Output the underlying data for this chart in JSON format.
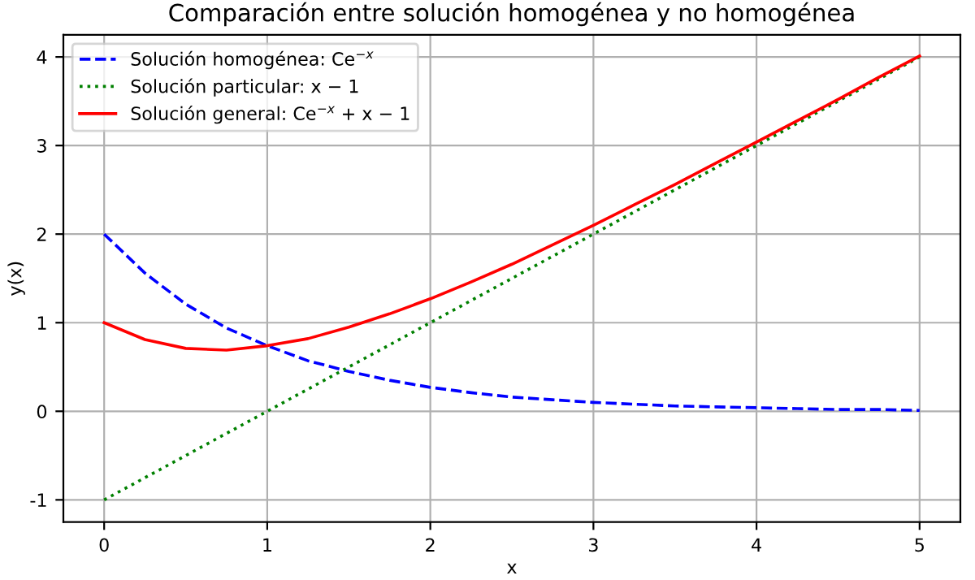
{
  "chart_data": {
    "type": "line",
    "title": "Comparación entre solución homogénea y no homogénea",
    "xlabel": "x",
    "ylabel": "y(x)",
    "x": [
      0,
      0.25,
      0.5,
      0.75,
      1,
      1.25,
      1.5,
      1.75,
      2,
      2.25,
      2.5,
      2.75,
      3,
      3.25,
      3.5,
      3.75,
      4,
      4.25,
      4.5,
      4.75,
      5
    ],
    "series": [
      {
        "name": "Solución homogénea: Ce$^{−x}$",
        "color": "#0000ff",
        "line_style": "dashed",
        "values": [
          2,
          1.56,
          1.21,
          0.94,
          0.74,
          0.57,
          0.45,
          0.35,
          0.27,
          0.21,
          0.16,
          0.13,
          0.1,
          0.08,
          0.06,
          0.05,
          0.04,
          0.03,
          0.02,
          0.02,
          0.01
        ]
      },
      {
        "name": "Solución particular: x − 1",
        "color": "#008000",
        "line_style": "dotted",
        "values": [
          -1,
          -0.75,
          -0.5,
          -0.25,
          0,
          0.25,
          0.5,
          0.75,
          1,
          1.25,
          1.5,
          1.75,
          2,
          2.25,
          2.5,
          2.75,
          3,
          3.25,
          3.5,
          3.75,
          4
        ]
      },
      {
        "name": "Solución general: Ce$^{−x}$ + x − 1",
        "color": "#ff0000",
        "line_style": "solid",
        "values": [
          1,
          0.81,
          0.71,
          0.69,
          0.74,
          0.82,
          0.95,
          1.1,
          1.27,
          1.46,
          1.66,
          1.88,
          2.1,
          2.33,
          2.56,
          2.8,
          3.04,
          3.28,
          3.52,
          3.77,
          4.01
        ]
      }
    ],
    "xlim": [
      -0.25,
      5.25
    ],
    "ylim": [
      -1.25,
      4.25
    ],
    "xticks": [
      0,
      1,
      2,
      3,
      4,
      5
    ],
    "yticks": [
      -1,
      0,
      1,
      2,
      3,
      4
    ],
    "grid": true,
    "legend": "top left"
  }
}
